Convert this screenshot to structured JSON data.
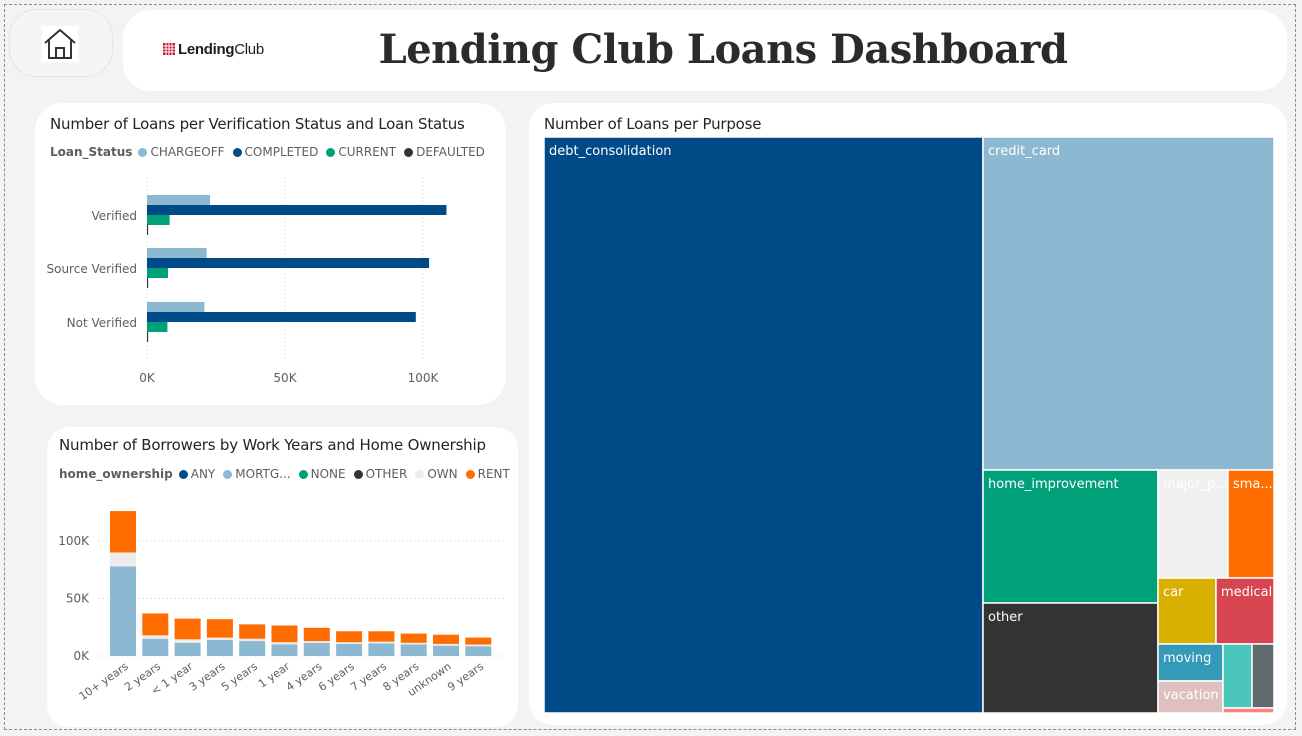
{
  "header": {
    "title": "Lending Club Loans Dashboard",
    "logo_text_bold": "Lending",
    "logo_text_light": "Club",
    "home_icon": "home-icon"
  },
  "colors": {
    "chargeoff": "#8cb8d1",
    "completed": "#004b87",
    "current": "#00a07a",
    "defaulted": "#333333",
    "any": "#004b87",
    "mortgage": "#8cb8d1",
    "none": "#00a07a",
    "other": "#333333",
    "own": "#ececec",
    "rent": "#ff6d00"
  },
  "verification_chart": {
    "title": "Number of Loans per Verification Status and Loan Status",
    "legend_title": "Loan_Status",
    "legend": [
      {
        "label": "CHARGEOFF",
        "color": "#8cb8d1"
      },
      {
        "label": "COMPLETED",
        "color": "#004b87"
      },
      {
        "label": "CURRENT",
        "color": "#00a07a"
      },
      {
        "label": "DEFAULTED",
        "color": "#333333"
      }
    ]
  },
  "work_chart": {
    "title": "Number of Borrowers by Work Years and Home Ownership",
    "legend_title": "home_ownership",
    "legend": [
      {
        "label": "ANY",
        "color": "#004b87"
      },
      {
        "label": "MORTG...",
        "color": "#8cb8d1"
      },
      {
        "label": "NONE",
        "color": "#00a07a"
      },
      {
        "label": "OTHER",
        "color": "#333333"
      },
      {
        "label": "OWN",
        "color": "#ececec"
      },
      {
        "label": "RENT",
        "color": "#ff6d00"
      }
    ]
  },
  "purpose_chart": {
    "title": "Number of Loans per Purpose"
  },
  "chart_data": [
    {
      "type": "bar",
      "orientation": "horizontal",
      "title": "Number of Loans per Verification Status and Loan Status",
      "categories": [
        "Verified",
        "Source Verified",
        "Not Verified"
      ],
      "series": [
        {
          "name": "CHARGEOFF",
          "values": [
            22800,
            21600,
            20800
          ]
        },
        {
          "name": "COMPLETED",
          "values": [
            108500,
            102200,
            97400
          ]
        },
        {
          "name": "CURRENT",
          "values": [
            8200,
            7600,
            7400
          ]
        },
        {
          "name": "DEFAULTED",
          "values": [
            400,
            400,
            400
          ]
        }
      ],
      "xlim": [
        0,
        110000
      ],
      "xticks": [
        "0K",
        "50K",
        "100K"
      ],
      "tick_values": [
        0,
        50000,
        100000
      ],
      "legend_position": "top-left",
      "grid": true
    },
    {
      "type": "bar",
      "stacked": true,
      "title": "Number of Borrowers by Work Years and Home Ownership",
      "categories": [
        "10+ years",
        "2 years",
        "< 1 year",
        "3 years",
        "5 years",
        "1 year",
        "4 years",
        "6 years",
        "7 years",
        "8 years",
        "unknown",
        "9 years"
      ],
      "series": [
        {
          "name": "ANY",
          "values": [
            0,
            0,
            0,
            0,
            0,
            0,
            0,
            0,
            0,
            0,
            0,
            0
          ]
        },
        {
          "name": "MORTG...",
          "values": [
            78000,
            15000,
            11500,
            14000,
            13000,
            10000,
            11500,
            10500,
            11000,
            10000,
            9000,
            8500
          ]
        },
        {
          "name": "NONE",
          "values": [
            0,
            0,
            0,
            0,
            0,
            0,
            0,
            0,
            0,
            0,
            0,
            0
          ]
        },
        {
          "name": "OTHER",
          "values": [
            0,
            0,
            0,
            0,
            0,
            0,
            0,
            0,
            0,
            0,
            0,
            0
          ]
        },
        {
          "name": "OWN",
          "values": [
            12000,
            3000,
            3000,
            2000,
            2000,
            2000,
            1500,
            1500,
            1500,
            1500,
            1500,
            1500
          ]
        },
        {
          "name": "RENT",
          "values": [
            36000,
            19000,
            18000,
            16000,
            12500,
            14500,
            11500,
            9500,
            9000,
            8000,
            8000,
            6000
          ]
        }
      ],
      "ylim": [
        0,
        130000
      ],
      "yticks": [
        "0K",
        "50K",
        "100K"
      ],
      "tick_values": [
        0,
        50000,
        100000
      ],
      "legend_position": "top-left",
      "grid": true
    },
    {
      "type": "treemap",
      "title": "Number of Loans per Purpose",
      "items": [
        {
          "label": "debt_consolidation",
          "value": 142000,
          "color": "#004b87"
        },
        {
          "label": "credit_card",
          "value": 54000,
          "color": "#8cb8d1"
        },
        {
          "label": "home_improvement",
          "value": 17400,
          "color": "#00a07a"
        },
        {
          "label": "other",
          "value": 14500,
          "color": "#333333"
        },
        {
          "label": "major_p...",
          "value": 6000,
          "color": "#f0f0f0"
        },
        {
          "label": "sma...",
          "value": 5000,
          "color": "#ff6d00"
        },
        {
          "label": "car",
          "value": 3300,
          "color": "#d8b100"
        },
        {
          "label": "medical",
          "value": 3300,
          "color": "#d64550"
        },
        {
          "label": "moving",
          "value": 1700,
          "color": "#3599b8"
        },
        {
          "label": "vacation",
          "value": 1300,
          "color": "#dfbfbf"
        },
        {
          "label": "",
          "value": 1800,
          "color": "#4ac5bb"
        },
        {
          "label": "",
          "value": 1200,
          "color": "#5f6b6d"
        },
        {
          "label": "",
          "value": 200,
          "color": "#fb8281"
        }
      ]
    }
  ]
}
